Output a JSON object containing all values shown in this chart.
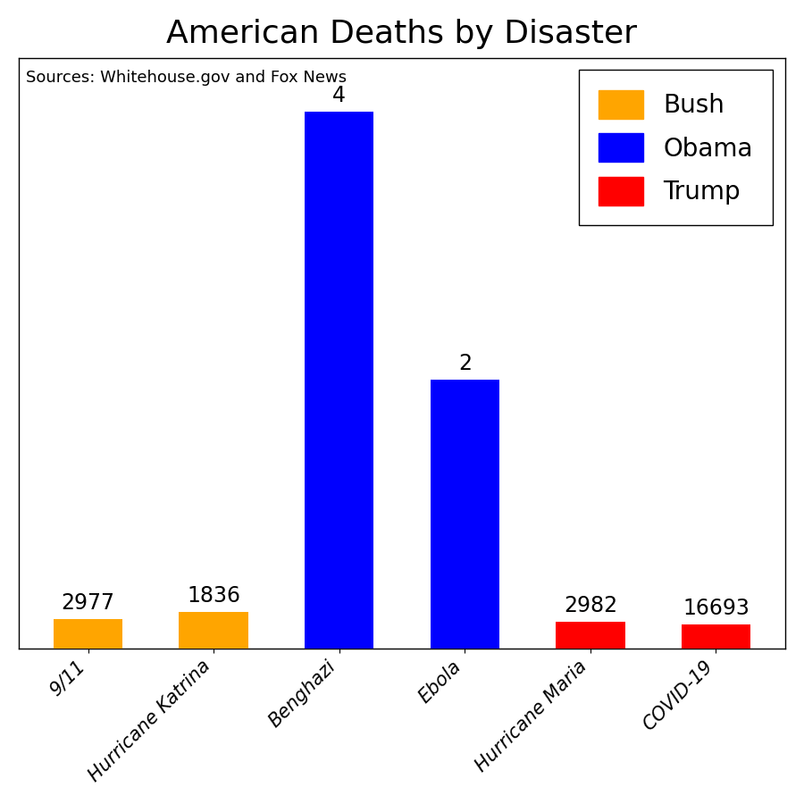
{
  "title": "American Deaths by Disaster",
  "source_text": "Sources: Whitehouse.gov and Fox News",
  "categories": [
    "9/11",
    "Hurricane Katrina",
    "Benghazi",
    "Ebola",
    "Hurricane Maria",
    "COVID-19"
  ],
  "values": [
    2977,
    1836,
    4,
    2,
    2982,
    16693
  ],
  "bar_colors": [
    "#FFA500",
    "#FFA500",
    "#0000FF",
    "#0000FF",
    "#FF0000",
    "#FF0000"
  ],
  "legend_labels": [
    "Bush",
    "Obama",
    "Trump"
  ],
  "legend_colors": [
    "#FFA500",
    "#0000FF",
    "#FF0000"
  ],
  "ylim_max": 4.4,
  "display_heights": [
    0.22,
    0.27,
    4.0,
    2.0,
    0.2,
    0.18
  ],
  "title_fontsize": 26,
  "tick_label_fontsize": 15,
  "value_label_fontsize": 17,
  "legend_fontsize": 20,
  "source_fontsize": 13,
  "bar_width": 0.55,
  "background_color": "#FFFFFF"
}
